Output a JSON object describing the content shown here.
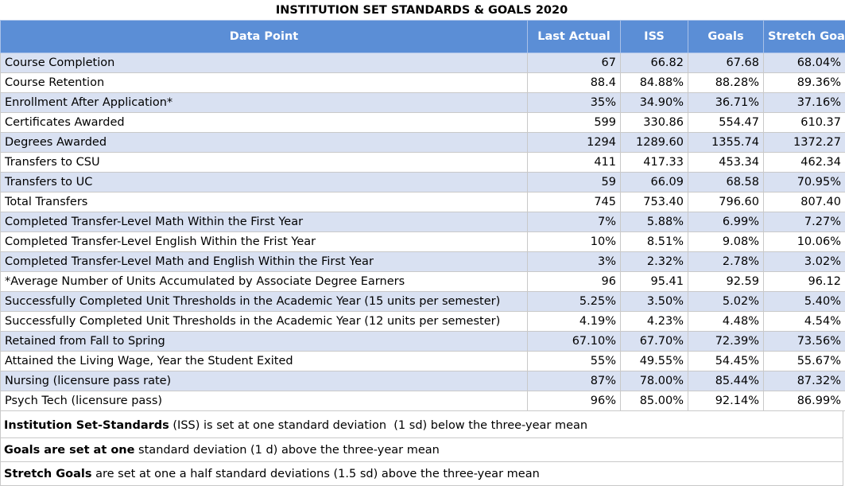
{
  "title": "INSTITUTION SET STANDARDS & GOALS 2020",
  "header": [
    "Data Point",
    "Last Actual",
    "ISS",
    "Goals",
    "Stretch Goal"
  ],
  "rows": [
    [
      "Course Completion",
      "67",
      "66.82",
      "67.68",
      "68.04%"
    ],
    [
      "Course Retention",
      "88.4",
      "84.88%",
      "88.28%",
      "89.36%"
    ],
    [
      "Enrollment After Application*",
      "35%",
      "34.90%",
      "36.71%",
      "37.16%"
    ],
    [
      "Certificates Awarded",
      "599",
      "330.86",
      "554.47",
      "610.37"
    ],
    [
      "Degrees Awarded",
      "1294",
      "1289.60",
      "1355.74",
      "1372.27"
    ],
    [
      "Transfers to CSU",
      "411",
      "417.33",
      "453.34",
      "462.34"
    ],
    [
      "Transfers to UC",
      "59",
      "66.09",
      "68.58",
      "70.95%"
    ],
    [
      "Total Transfers",
      "745",
      "753.40",
      "796.60",
      "807.40"
    ],
    [
      "Completed Transfer-Level Math Within the First Year",
      "7%",
      "5.88%",
      "6.99%",
      "7.27%"
    ],
    [
      "Completed Transfer-Level English Within the Frist Year",
      "10%",
      "8.51%",
      "9.08%",
      "10.06%"
    ],
    [
      "Completed Transfer-Level Math and English Within the First Year",
      "3%",
      "2.32%",
      "2.78%",
      "3.02%"
    ],
    [
      "*Average Number of Units Accumulated by Associate Degree Earners",
      "96",
      "95.41",
      "92.59",
      "96.12"
    ],
    [
      "Successfully Completed Unit Thresholds in the Academic Year (15 units per semester)",
      "5.25%",
      "3.50%",
      "5.02%",
      "5.40%"
    ],
    [
      "Successfully Completed Unit Thresholds in the Academic Year (12 units per semester)",
      "4.19%",
      "4.23%",
      "4.48%",
      "4.54%"
    ],
    [
      "Retained from Fall to Spring",
      "67.10%",
      "67.70%",
      "72.39%",
      "73.56%"
    ],
    [
      "Attained the Living Wage, Year the Student Exited",
      "55%",
      "49.55%",
      "54.45%",
      "55.67%"
    ],
    [
      "Nursing (licensure pass rate)",
      "87%",
      "78.00%",
      "85.44%",
      "87.32%"
    ],
    [
      "Psych Tech (licensure pass)",
      "96%",
      "85.00%",
      "92.14%",
      "86.99%"
    ]
  ],
  "footnotes": [
    {
      "bold": "Institution Set-Standards",
      "text": " (ISS) is set at one standard deviation  (1 sd) below the three-year mean"
    },
    {
      "bold": "Goals are set at one",
      "text": " standard deviation (1 d) above the three-year mean"
    },
    {
      "bold": "Stretch Goals",
      "text": " are set at one a half standard deviations (1.5 sd) above the three-year mean"
    }
  ]
}
